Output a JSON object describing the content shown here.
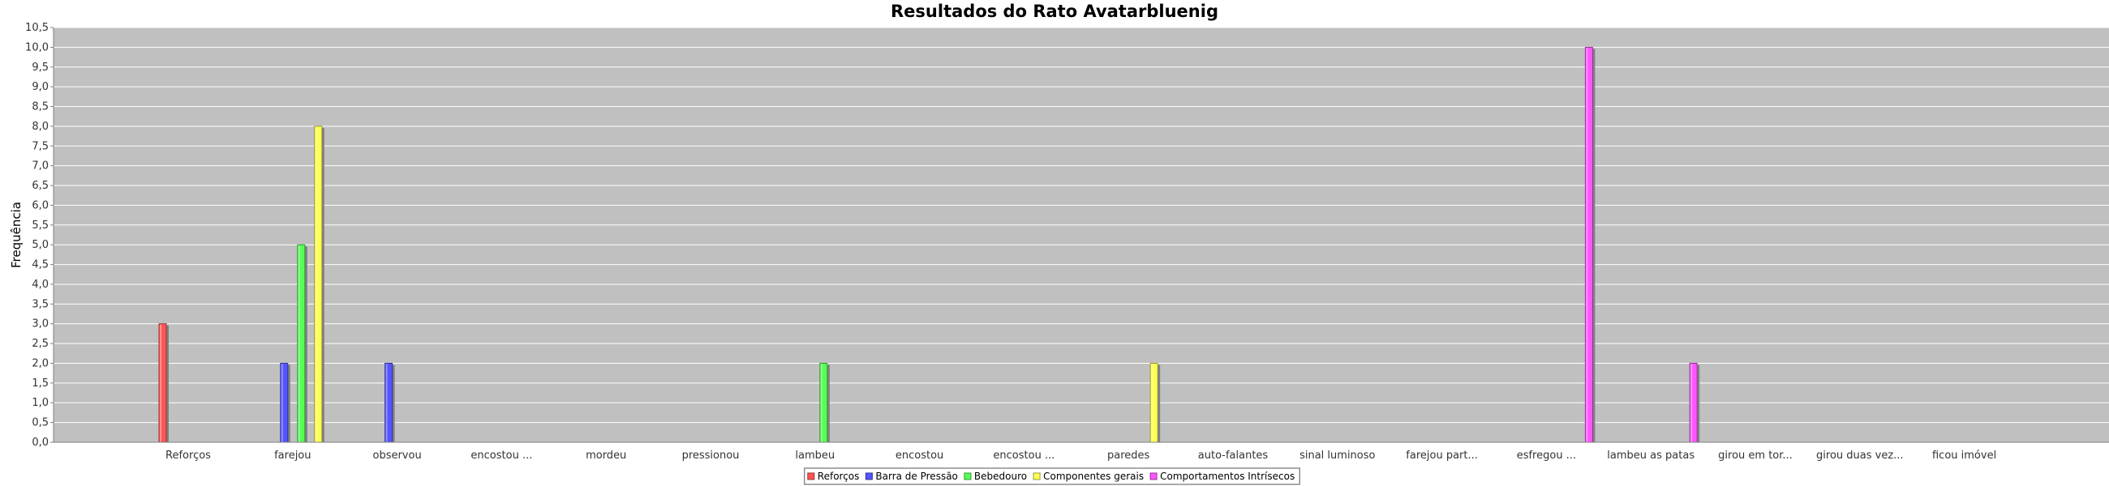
{
  "chart_data": {
    "type": "bar",
    "title": "Resultados do Rato Avatarbluenig",
    "xlabel": "",
    "ylabel": "Frequência",
    "ylim": [
      0,
      10.5
    ],
    "yticks": [
      "0,0",
      "0,5",
      "1,0",
      "1,5",
      "2,0",
      "2,5",
      "3,0",
      "3,5",
      "4,0",
      "4,5",
      "5,0",
      "5,5",
      "6,0",
      "6,5",
      "7,0",
      "7,5",
      "8,0",
      "8,5",
      "9,0",
      "9,5",
      "10,0",
      "10,5"
    ],
    "grid": true,
    "legend_position": "bottom",
    "categories": [
      "Reforços",
      "farejou",
      "observou",
      "encostou ...",
      "mordeu",
      "pressionou",
      "lambeu",
      "encostou",
      "encostou ...",
      "paredes",
      "auto-falantes",
      "sinal luminoso",
      "farejou part...",
      "esfregou ...",
      "lambeu as patas",
      "girou em tor...",
      "girou duas vez...",
      "ficou imóvel"
    ],
    "series": [
      {
        "name": "Reforços",
        "color": "#ff5555",
        "values": [
          3,
          0,
          0,
          0,
          0,
          0,
          0,
          0,
          0,
          0,
          0,
          0,
          0,
          0,
          0,
          0,
          0,
          0
        ]
      },
      {
        "name": "Barra de Pressão",
        "color": "#5555ff",
        "values": [
          0,
          2,
          2,
          0,
          0,
          0,
          0,
          0,
          0,
          0,
          0,
          0,
          0,
          0,
          0,
          0,
          0,
          0
        ]
      },
      {
        "name": "Bebedouro",
        "color": "#55ff55",
        "values": [
          0,
          5,
          0,
          0,
          0,
          0,
          2,
          0,
          0,
          0,
          0,
          0,
          0,
          0,
          0,
          0,
          0,
          0
        ]
      },
      {
        "name": "Componentes gerais",
        "color": "#ffff55",
        "values": [
          0,
          8,
          0,
          0,
          0,
          0,
          0,
          0,
          0,
          2,
          0,
          0,
          0,
          0,
          0,
          0,
          0,
          0
        ]
      },
      {
        "name": "Comportamentos Intrísecos",
        "color": "#ff55ff",
        "values": [
          0,
          0,
          0,
          0,
          0,
          0,
          0,
          0,
          0,
          0,
          0,
          0,
          0,
          10,
          2,
          0,
          0,
          0
        ]
      }
    ]
  }
}
